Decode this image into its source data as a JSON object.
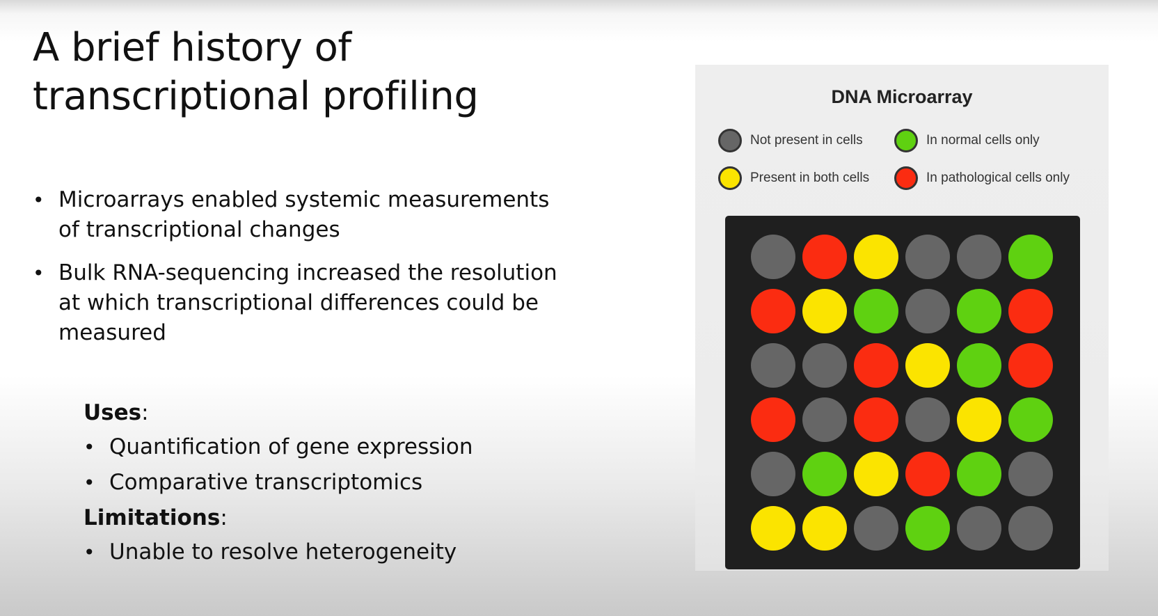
{
  "slide": {
    "title_line1": "A brief history of",
    "title_line2": "transcriptional profiling",
    "bullets": [
      "Microarrays enabled systemic measurements of transcriptional changes",
      "Bulk RNA-sequencing increased the resolution at which transcriptional differences could be measured"
    ],
    "uses_heading": "Uses",
    "uses_items": [
      "Quantification of gene expression",
      "Comparative transcriptomics"
    ],
    "limitations_heading": "Limitations",
    "limitations_items": [
      "Unable to resolve heterogeneity"
    ],
    "heading_suffix": ":"
  },
  "figure": {
    "title": "DNA Microarray",
    "legend": [
      {
        "key": "not_present",
        "label": "Not present in cells",
        "color": "#666666"
      },
      {
        "key": "normal",
        "label": "In normal cells only",
        "color": "#5fd111"
      },
      {
        "key": "both",
        "label": "Present in both cells",
        "color": "#fbe400"
      },
      {
        "key": "pathological",
        "label": "In pathological cells only",
        "color": "#fb2c11"
      }
    ],
    "grid": [
      [
        "not_present",
        "pathological",
        "both",
        "not_present",
        "not_present",
        "normal"
      ],
      [
        "pathological",
        "both",
        "normal",
        "not_present",
        "normal",
        "pathological"
      ],
      [
        "not_present",
        "not_present",
        "pathological",
        "both",
        "normal",
        "pathological"
      ],
      [
        "pathological",
        "not_present",
        "pathological",
        "not_present",
        "both",
        "normal"
      ],
      [
        "not_present",
        "normal",
        "both",
        "pathological",
        "normal",
        "not_present"
      ],
      [
        "both",
        "both",
        "not_present",
        "normal",
        "not_present",
        "not_present"
      ]
    ]
  }
}
